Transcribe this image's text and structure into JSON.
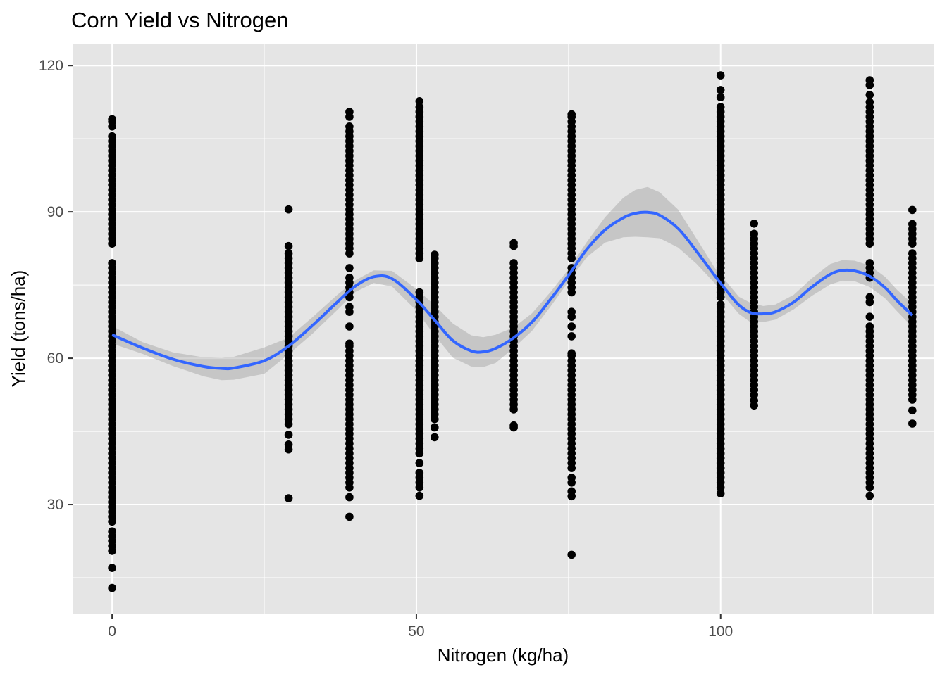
{
  "chart_data": {
    "type": "scatter",
    "title": "Corn Yield vs Nitrogen",
    "xlabel": "Nitrogen (kg/ha)",
    "ylabel": "Yield (tons/ha)",
    "xlim": [
      -6.5,
      135
    ],
    "ylim": [
      7.5,
      124.5
    ],
    "x_ticks": [
      0,
      50,
      100
    ],
    "x_tick_labels": [
      "0",
      "50",
      "100"
    ],
    "x_minor_ticks": [
      25,
      75,
      125
    ],
    "y_ticks": [
      30,
      60,
      90,
      120
    ],
    "y_tick_labels": [
      "30",
      "60",
      "90",
      "120"
    ],
    "y_minor_ticks": [
      15,
      45,
      75,
      105
    ],
    "grid": true,
    "legend": "none",
    "colors": {
      "panel_background": "#e5e5e5",
      "grid": "#ffffff",
      "points": "#000000",
      "smooth_line": "#3366ff",
      "confidence_band": "#999999",
      "axis_text": "#4d4d4d",
      "title_text": "#000000"
    },
    "point_groups": [
      {
        "x": 0,
        "yields": [
          12.9,
          17.0,
          20.5,
          21.5,
          22.5,
          23.5,
          24.5,
          26.5,
          27.5,
          28.5,
          29.5,
          30.5,
          31.5,
          32.5,
          33.5,
          34.5,
          35.5,
          36.5,
          37.5,
          38.5,
          39.5,
          40.5,
          41.5,
          42.5,
          43.5,
          44.5,
          45.5,
          46.5,
          47.5,
          48.5,
          49.5,
          50.5,
          51.5,
          52.5,
          53.5,
          54.5,
          55.5,
          56.5,
          57.5,
          58.5,
          59.5,
          60.5,
          61.5,
          62.5,
          63.5,
          64.5,
          65.5,
          66.5,
          67.5,
          68.5,
          69.5,
          70.5,
          71.5,
          72.5,
          73.5,
          74.5,
          75.5,
          76.5,
          77.5,
          78.5,
          79.5,
          83.5,
          84.5,
          85.5,
          86.5,
          87.5,
          88.5,
          89.5,
          90.5,
          91.5,
          92.5,
          93.5,
          94.5,
          95.5,
          96.5,
          97.5,
          98.5,
          99.5,
          100.5,
          101.5,
          102.5,
          103.5,
          104.5,
          105.5,
          107.5,
          108.5,
          109.0
        ]
      },
      {
        "x": 29,
        "yields": [
          31.3,
          41.3,
          42.3,
          44.3,
          46.5,
          47.5,
          48.5,
          49.5,
          50.5,
          51.5,
          52.5,
          53.5,
          54.5,
          55.5,
          56.5,
          57.5,
          58.5,
          59.5,
          60.5,
          61.5,
          62.5,
          63.5,
          64.5,
          65.5,
          66.5,
          67.5,
          68.5,
          69.5,
          70.5,
          71.5,
          72.5,
          73.5,
          74.5,
          75.5,
          76.5,
          77.5,
          78.5,
          79.5,
          80.5,
          81.5,
          83.0,
          90.5
        ]
      },
      {
        "x": 39,
        "yields": [
          27.5,
          31.5,
          33.5,
          34.5,
          35.5,
          36.5,
          37.5,
          38.5,
          39.5,
          40.5,
          41.5,
          42.5,
          43.5,
          44.5,
          45.5,
          46.5,
          47.5,
          48.5,
          49.5,
          50.5,
          51.5,
          52.5,
          53.5,
          54.5,
          55.5,
          56.5,
          57.5,
          58.5,
          59.5,
          60.5,
          61.5,
          62.5,
          63.0,
          66.5,
          69.5,
          70.5,
          72.5,
          73.5,
          74.5,
          75.5,
          76.5,
          78.5,
          81.5,
          82.5,
          83.5,
          84.5,
          85.5,
          86.5,
          87.5,
          88.5,
          89.5,
          90.5,
          91.5,
          92.5,
          93.5,
          94.5,
          95.5,
          96.5,
          97.5,
          98.5,
          99.5,
          100.5,
          101.5,
          102.5,
          103.5,
          104.5,
          105.5,
          106.5,
          107.5,
          109.5,
          110.5
        ]
      },
      {
        "x": 50.5,
        "yields": [
          31.8,
          33.5,
          34.5,
          35.5,
          36.5,
          38.5,
          40.5,
          41.5,
          42.5,
          43.5,
          44.5,
          45.5,
          46.5,
          47.5,
          48.5,
          49.5,
          50.5,
          51.5,
          52.5,
          53.5,
          54.5,
          55.5,
          56.5,
          57.5,
          58.5,
          59.5,
          60.5,
          61.5,
          62.5,
          63.5,
          64.5,
          65.5,
          66.5,
          67.5,
          68.5,
          69.5,
          70.5,
          71.5,
          72.5,
          73.5,
          80.5,
          81.5,
          82.5,
          83.5,
          84.5,
          85.5,
          86.5,
          87.5,
          88.5,
          89.5,
          90.5,
          91.5,
          92.5,
          93.5,
          94.5,
          95.5,
          96.5,
          97.5,
          98.5,
          99.5,
          100.5,
          101.5,
          102.5,
          103.5,
          104.5,
          105.5,
          106.5,
          107.5,
          108.5,
          109.5,
          110.5,
          111.5,
          112.7
        ]
      },
      {
        "x": 53,
        "yields": [
          43.8,
          45.8,
          47.5,
          48.5,
          49.5,
          50.5,
          51.5,
          52.5,
          53.5,
          54.5,
          55.5,
          56.5,
          57.5,
          58.5,
          59.5,
          60.5,
          61.5,
          62.5,
          63.5,
          64.5,
          65.5,
          66.5,
          67.5,
          68.5,
          69.5,
          70.5,
          71.5,
          72.5,
          73.5,
          74.5,
          75.5,
          76.5,
          77.5,
          78.5,
          79.5,
          80.5,
          81.2
        ]
      },
      {
        "x": 66,
        "yields": [
          45.8,
          46.2,
          49.5,
          50.5,
          51.5,
          52.5,
          53.5,
          54.5,
          55.5,
          56.5,
          57.5,
          58.5,
          59.5,
          60.5,
          61.5,
          62.5,
          63.5,
          64.5,
          65.5,
          66.5,
          67.5,
          68.5,
          69.5,
          70.5,
          71.5,
          72.5,
          73.5,
          74.5,
          75.5,
          76.5,
          77.5,
          78.5,
          79.5,
          83.0,
          83.6
        ]
      },
      {
        "x": 75.5,
        "yields": [
          19.7,
          31.7,
          32.7,
          34.5,
          35.5,
          37.5,
          38.5,
          39.5,
          40.5,
          41.5,
          42.5,
          43.5,
          44.5,
          45.5,
          46.5,
          47.5,
          48.5,
          49.5,
          50.5,
          51.5,
          52.5,
          53.5,
          54.5,
          55.5,
          56.5,
          57.5,
          58.5,
          59.5,
          60.5,
          61.0,
          64.5,
          66.5,
          68.5,
          69.5,
          73.5,
          74.5,
          75.5,
          76.5,
          77.5,
          78.5,
          80.5,
          81.5,
          82.5,
          83.5,
          84.5,
          85.5,
          86.5,
          87.5,
          88.5,
          89.5,
          90.5,
          91.5,
          92.5,
          93.5,
          94.5,
          95.5,
          96.5,
          97.5,
          98.5,
          99.5,
          100.5,
          101.5,
          102.5,
          103.5,
          104.5,
          105.5,
          106.5,
          107.5,
          108.5,
          109.5,
          110.0
        ]
      },
      {
        "x": 100,
        "yields": [
          32.3,
          33.5,
          34.5,
          35.5,
          36.5,
          37.5,
          38.5,
          39.5,
          40.5,
          41.5,
          42.5,
          43.5,
          44.5,
          45.5,
          46.5,
          47.5,
          48.5,
          49.5,
          50.5,
          51.5,
          52.5,
          53.5,
          54.5,
          55.5,
          56.5,
          57.5,
          58.5,
          59.5,
          60.5,
          61.5,
          62.5,
          63.5,
          64.5,
          65.5,
          66.5,
          67.5,
          68.5,
          69.5,
          70.5,
          71.0,
          72.5,
          73.5,
          74.5,
          75.5,
          76.5,
          77.5,
          78.5,
          79.5,
          80.5,
          81.5,
          82.5,
          83.5,
          84.5,
          85.5,
          86.5,
          87.5,
          88.5,
          89.5,
          90.5,
          91.5,
          92.5,
          93.5,
          94.5,
          95.5,
          96.5,
          97.5,
          98.5,
          99.5,
          100.5,
          101.5,
          102.5,
          103.5,
          104.5,
          105.5,
          106.5,
          107.5,
          108.5,
          109.5,
          110.5,
          111.5,
          113.5,
          115.0,
          118.0
        ]
      },
      {
        "x": 105.5,
        "yields": [
          50.3,
          51.3,
          52.5,
          53.5,
          54.5,
          55.5,
          56.5,
          57.5,
          58.5,
          59.5,
          60.5,
          61.5,
          62.5,
          63.5,
          64.5,
          65.5,
          66.5,
          67.5,
          68.5,
          69.5,
          70.5,
          71.5,
          72.5,
          73.5,
          74.5,
          75.5,
          76.5,
          77.5,
          78.5,
          79.5,
          80.5,
          81.5,
          82.5,
          83.5,
          84.5,
          85.5,
          87.6
        ]
      },
      {
        "x": 124.5,
        "yields": [
          31.8,
          33.5,
          34.5,
          35.5,
          36.5,
          37.5,
          38.5,
          39.5,
          40.5,
          41.5,
          42.5,
          43.5,
          44.5,
          45.5,
          46.5,
          47.5,
          48.5,
          49.5,
          50.5,
          51.5,
          52.5,
          53.5,
          54.5,
          55.5,
          56.5,
          57.5,
          58.5,
          59.5,
          60.5,
          61.5,
          62.5,
          63.5,
          64.5,
          65.5,
          66.5,
          68.5,
          71.5,
          72.5,
          76.5,
          77.5,
          78.5,
          79.5,
          83.5,
          84.5,
          85.5,
          86.5,
          87.5,
          88.5,
          89.5,
          90.5,
          91.5,
          92.5,
          93.5,
          94.5,
          95.5,
          96.5,
          97.5,
          98.5,
          99.5,
          100.5,
          101.5,
          102.5,
          103.5,
          104.5,
          105.5,
          106.5,
          107.5,
          108.5,
          109.5,
          110.5,
          111.5,
          112.5,
          114.0,
          116.0,
          117.0
        ]
      },
      {
        "x": 131.5,
        "yields": [
          46.6,
          49.3,
          51.5,
          52.5,
          53.5,
          54.5,
          55.5,
          56.5,
          57.5,
          58.5,
          59.5,
          60.5,
          61.5,
          62.5,
          63.5,
          64.5,
          65.5,
          66.5,
          67.5,
          68.5,
          69.5,
          70.5,
          71.5,
          72.5,
          73.5,
          74.5,
          75.5,
          76.5,
          77.5,
          78.5,
          79.5,
          80.5,
          81.5,
          83.5,
          84.5,
          85.5,
          86.5,
          87.5,
          90.4
        ]
      }
    ],
    "smooth": {
      "method": "loess",
      "x": [
        0,
        5,
        10,
        15,
        18,
        20,
        25,
        29,
        33,
        37,
        40,
        43,
        46,
        50,
        53,
        56,
        59,
        61,
        63,
        66,
        69,
        72,
        75,
        78,
        81,
        84,
        86,
        88,
        90,
        93,
        96,
        99,
        101,
        103,
        105,
        107,
        109,
        112,
        115,
        118,
        120,
        122,
        124.5,
        127,
        129,
        131.5
      ],
      "y": [
        64.8,
        62.1,
        59.8,
        58.3,
        57.9,
        58.0,
        59.5,
        62.5,
        66.8,
        71.5,
        74.8,
        76.7,
        76.3,
        72.0,
        67.8,
        63.6,
        61.5,
        61.3,
        62.0,
        64.2,
        67.4,
        72.0,
        77.0,
        82.3,
        86.3,
        88.8,
        89.7,
        89.9,
        89.3,
        86.6,
        82.0,
        77.0,
        73.8,
        70.9,
        69.3,
        69.1,
        69.5,
        71.5,
        74.6,
        77.2,
        78.0,
        77.9,
        76.8,
        74.5,
        71.8,
        68.8
      ],
      "se_upper": [
        66.6,
        63.3,
        61.2,
        60.2,
        60.1,
        60.3,
        62.2,
        64.2,
        68.5,
        73.0,
        76.0,
        78.0,
        77.9,
        74.2,
        70.9,
        67.1,
        64.7,
        64.3,
        64.8,
        66.3,
        69.2,
        73.5,
        78.2,
        83.8,
        88.9,
        92.9,
        94.5,
        95.1,
        94.0,
        90.5,
        84.6,
        78.6,
        75.6,
        72.6,
        71.3,
        70.7,
        71.0,
        73.0,
        76.4,
        79.3,
        80.1,
        80.0,
        79.0,
        76.7,
        74.0,
        71.2
      ],
      "se_lower": [
        63.0,
        60.9,
        58.4,
        56.3,
        55.5,
        55.6,
        56.8,
        60.8,
        65.1,
        69.9,
        73.6,
        75.4,
        74.7,
        69.8,
        64.7,
        60.1,
        58.3,
        58.2,
        59.0,
        62.1,
        65.6,
        70.5,
        75.7,
        80.7,
        83.7,
        84.8,
        84.9,
        84.8,
        84.6,
        82.7,
        79.4,
        75.4,
        72.0,
        69.1,
        67.3,
        67.4,
        67.9,
        70.0,
        72.8,
        75.1,
        75.9,
        75.8,
        74.6,
        72.3,
        69.6,
        66.4
      ]
    }
  }
}
